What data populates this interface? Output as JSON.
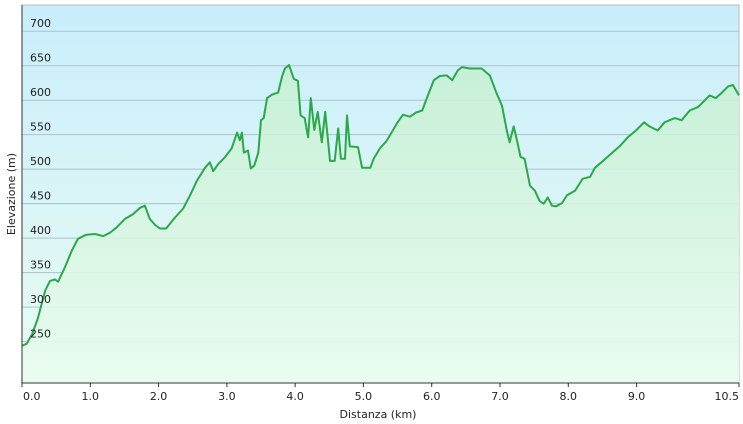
{
  "chart_data": {
    "type": "line",
    "xlabel": "Distanza  (km)",
    "ylabel": "Elevazione (m)",
    "xlim": [
      0,
      10.5
    ],
    "ylim": [
      190,
      738
    ],
    "xticks": [
      {
        "value": 0,
        "label": "0.0"
      },
      {
        "value": 1,
        "label": "1.0"
      },
      {
        "value": 2,
        "label": "2.0"
      },
      {
        "value": 3,
        "label": "3.0"
      },
      {
        "value": 4,
        "label": "4.0"
      },
      {
        "value": 5,
        "label": "5.0"
      },
      {
        "value": 6,
        "label": "6.0"
      },
      {
        "value": 7,
        "label": "7.0"
      },
      {
        "value": 8,
        "label": "8.0"
      },
      {
        "value": 9,
        "label": "9.0"
      },
      {
        "value": 10.5,
        "label": "10.5"
      }
    ],
    "yticks": [
      250,
      300,
      350,
      400,
      450,
      500,
      550,
      600,
      650,
      700
    ],
    "grid": true,
    "series": [
      {
        "color": "#2aa84a",
        "x": [
          0,
          0.07,
          0.15,
          0.23,
          0.34,
          0.41,
          0.48,
          0.53,
          0.63,
          0.73,
          0.82,
          0.94,
          1.07,
          1.19,
          1.29,
          1.38,
          1.51,
          1.63,
          1.73,
          1.8,
          1.87,
          1.95,
          2.02,
          2.11,
          2.24,
          2.36,
          2.46,
          2.56,
          2.68,
          2.75,
          2.8,
          2.87,
          2.97,
          3.07,
          3.15,
          3.19,
          3.22,
          3.25,
          3.31,
          3.35,
          3.4,
          3.46,
          3.5,
          3.54,
          3.59,
          3.66,
          3.75,
          3.81,
          3.85,
          3.91,
          3.98,
          4.04,
          4.08,
          4.14,
          4.19,
          4.23,
          4.28,
          4.33,
          4.39,
          4.44,
          4.51,
          4.58,
          4.63,
          4.67,
          4.73,
          4.76,
          4.8,
          4.92,
          4.98,
          5.1,
          5.15,
          5.24,
          5.34,
          5.43,
          5.5,
          5.58,
          5.68,
          5.77,
          5.86,
          5.94,
          6.03,
          6.12,
          6.22,
          6.3,
          6.38,
          6.44,
          6.56,
          6.73,
          6.85,
          6.95,
          7.03,
          7.1,
          7.14,
          7.2,
          7.25,
          7.3,
          7.36,
          7.44,
          7.51,
          7.58,
          7.64,
          7.7,
          7.76,
          7.82,
          7.91,
          7.98,
          8.1,
          8.21,
          8.32,
          8.39,
          8.51,
          8.61,
          8.76,
          8.87,
          8.99,
          9.11,
          9.19,
          9.31,
          9.41,
          9.56,
          9.66,
          9.78,
          9.9,
          9.99,
          10.07,
          10.16,
          10.25,
          10.34,
          10.41,
          10.5
        ],
        "values": [
          244,
          247,
          261,
          283,
          324,
          338,
          340,
          337,
          358,
          382,
          399,
          405,
          406,
          403,
          408,
          415,
          428,
          435,
          444,
          447,
          428,
          419,
          414,
          414,
          430,
          443,
          462,
          483,
          502,
          510,
          497,
          507,
          517,
          530,
          553,
          542,
          553,
          524,
          527,
          501,
          505,
          524,
          571,
          574,
          603,
          608,
          611,
          635,
          646,
          651,
          631,
          628,
          578,
          574,
          546,
          603,
          557,
          583,
          539,
          583,
          512,
          512,
          559,
          515,
          515,
          578,
          533,
          532,
          502,
          502,
          515,
          530,
          541,
          556,
          568,
          579,
          576,
          582,
          585,
          606,
          629,
          635,
          636,
          629,
          643,
          648,
          646,
          646,
          636,
          610,
          592,
          556,
          539,
          562,
          541,
          518,
          515,
          476,
          469,
          454,
          450,
          459,
          447,
          446,
          451,
          462,
          469,
          486,
          489,
          502,
          512,
          521,
          534,
          546,
          556,
          568,
          562,
          556,
          568,
          574,
          571,
          585,
          590,
          599,
          607,
          603,
          611,
          620,
          622,
          607
        ]
      }
    ]
  }
}
